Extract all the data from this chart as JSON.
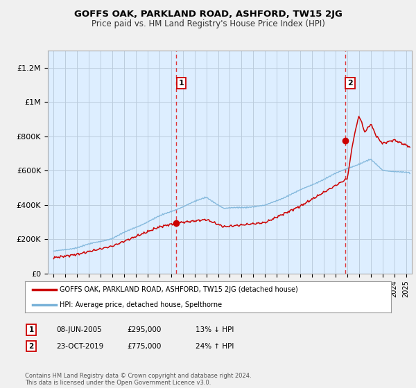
{
  "title": "GOFFS OAK, PARKLAND ROAD, ASHFORD, TW15 2JG",
  "subtitle": "Price paid vs. HM Land Registry's House Price Index (HPI)",
  "ylabel_ticks": [
    "£0",
    "£200K",
    "£400K",
    "£600K",
    "£800K",
    "£1M",
    "£1.2M"
  ],
  "ytick_values": [
    0,
    200000,
    400000,
    600000,
    800000,
    1000000,
    1200000
  ],
  "ylim": [
    0,
    1300000
  ],
  "xlim_start": 1994.5,
  "xlim_end": 2025.5,
  "sale1_x": 2005.44,
  "sale1_y": 295000,
  "sale2_x": 2019.81,
  "sale2_y": 775000,
  "vline1_x": 2005.44,
  "vline2_x": 2019.81,
  "legend_line1_label": "GOFFS OAK, PARKLAND ROAD, ASHFORD, TW15 2JG (detached house)",
  "legend_line2_label": "HPI: Average price, detached house, Spelthorne",
  "annotation1_num": "1",
  "annotation1_date": "08-JUN-2005",
  "annotation1_price": "£295,000",
  "annotation1_hpi": "13% ↓ HPI",
  "annotation2_num": "2",
  "annotation2_date": "23-OCT-2019",
  "annotation2_price": "£775,000",
  "annotation2_hpi": "24% ↑ HPI",
  "footer": "Contains HM Land Registry data © Crown copyright and database right 2024.\nThis data is licensed under the Open Government Licence v3.0.",
  "line_color_sale": "#cc0000",
  "line_color_hpi": "#7ab3d9",
  "bg_color": "#f0f0f0",
  "plot_bg_color": "#ddeeff",
  "grid_color": "#bbccdd",
  "vline_color": "#dd2222",
  "marker_color_sale": "#cc0000"
}
